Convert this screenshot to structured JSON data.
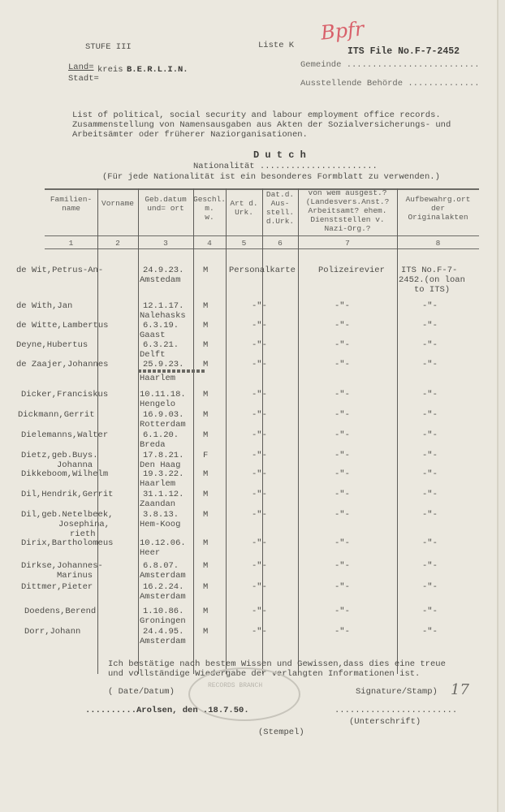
{
  "header": {
    "stufe": "STUFE III",
    "liste": "Liste K",
    "handwritten_mark": "Bpfr",
    "its_file": "ITS File No.F-7-2452",
    "land_label": "Land=",
    "stadt_label": "Stadt=",
    "kreis_label": "kreis",
    "kreis_value": "B.E.R.L.I.N.",
    "gemeinde_label": "Gemeinde ..........................",
    "behoerde_label": "Ausstellende Behörde ..............",
    "intro_line1": "List of political, social security and labour employment office records.",
    "intro_line2": "Zusammenstellung von Namensausgaben aus Akten der Sozialversicherungs- und",
    "intro_line3": "Arbeitsämter oder früherer Naziorganisationen.",
    "nationality_label": "Nationalität .......................",
    "nationality_value": "D u t c h",
    "nationality_note": "(Für jede Nationalität ist ein besonderes Formblatt zu verwenden.)"
  },
  "table": {
    "columns": [
      {
        "label": "Familien-\nname",
        "number": "1"
      },
      {
        "label": "Vorname",
        "number": "2"
      },
      {
        "label": "Geb.datum\nund= ort",
        "number": "3"
      },
      {
        "label": "Geschl.\nm.\nw.",
        "number": "4"
      },
      {
        "label": "Art d.\nUrk.",
        "number": "5"
      },
      {
        "label": "Dat.d.\nAus-\nstell.\nd.Urk.",
        "number": "6"
      },
      {
        "label": "von wem ausgest.?\n(Landesvers.Anst.?\nArbeitsamt? ehem.\nDienststellen v.\nNazi-Org.?",
        "number": "7"
      },
      {
        "label": "Aufbewahrg.ort\nder\nOriginalakten",
        "number": "8"
      }
    ],
    "rows": [
      {
        "name": [
          "de Wit,Petrus-An-"
        ],
        "date": "24.9.23.",
        "place": "Amstedam",
        "sex": "M",
        "doc": "Personalkarte",
        "issuer": "Polizeirevier",
        "location": [
          "ITS No.F-7-",
          "2452.(on loan",
          "to ITS)"
        ]
      },
      {
        "name": [
          "de With,Jan"
        ],
        "date": "12.1.17.",
        "place": "Nalehasks",
        "sex": "M",
        "doc": "-\"-",
        "issuer": "-\"-",
        "location": [
          "-\"-"
        ]
      },
      {
        "name": [
          "de Witte,Lambertus"
        ],
        "date": "6.3.19.",
        "place": "Gaast",
        "sex": "M",
        "doc": "-\"-",
        "issuer": "-\"-",
        "location": [
          "-\"-"
        ]
      },
      {
        "name": [
          "Deyne,Hubertus"
        ],
        "date": "6.3.21.",
        "place": "Delft",
        "sex": "M",
        "doc": "-\"-",
        "issuer": "-\"-",
        "location": [
          "-\"-"
        ]
      },
      {
        "name": [
          "de Zaajer,Johannes"
        ],
        "date": "25.9.23.",
        "place": "Haarlem",
        "sex": "M",
        "doc": "-\"-",
        "issuer": "-\"-",
        "location": [
          "-\"-"
        ]
      },
      {
        "name": [
          "Dicker,Franciskus"
        ],
        "date": "10.11.18.",
        "place": "Hengelo",
        "sex": "M",
        "doc": "-\"-",
        "issuer": "-\"-",
        "location": [
          "-\"-"
        ]
      },
      {
        "name": [
          "Dickmann,Gerrit"
        ],
        "date": "16.9.03.",
        "place": "Rotterdam",
        "sex": "M",
        "doc": "-\"-",
        "issuer": "-\"-",
        "location": [
          "-\"-"
        ]
      },
      {
        "name": [
          "Dielemanns,Walter"
        ],
        "date": "6.1.20.",
        "place": "Breda",
        "sex": "M",
        "doc": "-\"-",
        "issuer": "-\"-",
        "location": [
          "-\"-"
        ]
      },
      {
        "name": [
          "Dietz,geb.Buys.",
          "Johanna"
        ],
        "date": "17.8.21.",
        "place": "Den Haag",
        "sex": "F",
        "doc": "-\"-",
        "issuer": "-\"-",
        "location": [
          "-\"-"
        ]
      },
      {
        "name": [
          "Dikkeboom,Wilhelm"
        ],
        "date": "19.3.22.",
        "place": "Haarlem",
        "sex": "M",
        "doc": "-\"-",
        "issuer": "-\"-",
        "location": [
          "-\"-"
        ]
      },
      {
        "name": [
          "Dil,Hendrik,Gerrit"
        ],
        "date": "31.1.12.",
        "place": "Zaandan",
        "sex": "M",
        "doc": "-\"-",
        "issuer": "-\"-",
        "location": [
          "-\"-"
        ]
      },
      {
        "name": [
          "Dil,geb.Netelbeek,",
          "Josephina,",
          "rieth"
        ],
        "date": "3.8.13.",
        "place": "Hem-Koog",
        "sex": "M",
        "doc": "-\"-",
        "issuer": "-\"-",
        "location": [
          "-\"-"
        ]
      },
      {
        "name": [
          "Dirix,Bartholomeus"
        ],
        "date": "10.12.06.",
        "place": "Heer",
        "sex": "M",
        "doc": "-\"-",
        "issuer": "-\"-",
        "location": [
          "-\"-"
        ]
      },
      {
        "name": [
          "Dirkse,Johannes-",
          "Marinus"
        ],
        "date": "6.8.07.",
        "place": "Amsterdam",
        "sex": "M",
        "doc": "-\"-",
        "issuer": "-\"-",
        "location": [
          "-\"-"
        ]
      },
      {
        "name": [
          "Dittmer,Pieter"
        ],
        "date": "16.2.24.",
        "place": "Amsterdam",
        "sex": "M",
        "doc": "-\"-",
        "issuer": "-\"-",
        "location": [
          "-\"-"
        ]
      },
      {
        "name": [
          "Doedens,Berend"
        ],
        "date": "1.10.86.",
        "place": "Groningen",
        "sex": "M",
        "doc": "-\"-",
        "issuer": "-\"-",
        "location": [
          "-\"-"
        ]
      },
      {
        "name": [
          "Dorr,Johann"
        ],
        "date": "24.4.95.",
        "place": "Amsterdam",
        "sex": "M",
        "doc": "-\"-",
        "issuer": "-\"-",
        "location": [
          "-\"-"
        ]
      }
    ],
    "handwritten_count": "17"
  },
  "footer": {
    "confirm_line1": "Ich bestätige nach bestem Wissen und Gewissen,dass dies eine treue",
    "confirm_line2": "und vollständige Wiedergabe der verlangten Informationen ist.",
    "date_label": "( Date/Datum)",
    "signature_label": "Signature/Stamp)",
    "place_date": "..........Arolsen, den .18.7.50.",
    "signature_dots": "........................",
    "unterschrift": "(Unterschrift)",
    "stempel": "(Stempel)",
    "stamp_text": "RECORDS BRANCH"
  }
}
